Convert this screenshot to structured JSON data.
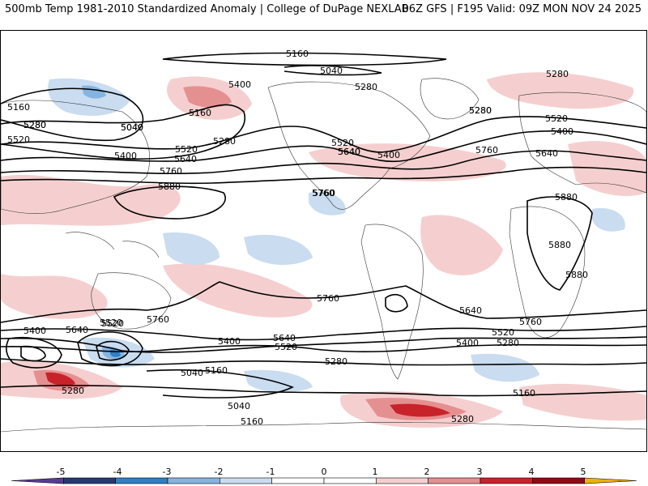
{
  "header": {
    "left_title": "500mb Temp 1981-2010 Standardized Anomaly | College of DuPage NEXLAB",
    "right_title": "06Z GFS | F195 Valid: 09Z MON NOV 24 2025"
  },
  "map": {
    "projection": "equirectangular-global",
    "shading_variable": "500mb temperature standardized anomaly",
    "contour_variable": "500mb height (dam*10)",
    "contour_labels": [
      {
        "text": "5160"
      },
      {
        "text": "5040"
      },
      {
        "text": "5400"
      },
      {
        "text": "5280"
      },
      {
        "text": "5160"
      },
      {
        "text": "5280"
      },
      {
        "text": "5040"
      },
      {
        "text": "5280"
      },
      {
        "text": "5520"
      },
      {
        "text": "5400"
      },
      {
        "text": "5520"
      },
      {
        "text": "5640"
      },
      {
        "text": "5760"
      },
      {
        "text": "5880"
      },
      {
        "text": "5160"
      },
      {
        "text": "5280"
      },
      {
        "text": "5040"
      },
      {
        "text": "5280"
      },
      {
        "text": "5520"
      },
      {
        "text": "5640"
      },
      {
        "text": "5400"
      },
      {
        "text": "5760"
      },
      {
        "text": "5280"
      },
      {
        "text": "5280"
      },
      {
        "text": "5400"
      },
      {
        "text": "5520"
      },
      {
        "text": "5640"
      },
      {
        "text": "5760"
      },
      {
        "text": "5880"
      },
      {
        "text": "5880"
      },
      {
        "text": "5880"
      },
      {
        "text": "5760"
      },
      {
        "text": "5400"
      },
      {
        "text": "5640"
      },
      {
        "text": "5520"
      },
      {
        "text": "5760"
      },
      {
        "text": "5760"
      },
      {
        "text": "5640"
      },
      {
        "text": "5400"
      },
      {
        "text": "5640"
      },
      {
        "text": "5520"
      },
      {
        "text": "5520"
      },
      {
        "text": "5400"
      },
      {
        "text": "5280"
      },
      {
        "text": "5160"
      },
      {
        "text": "5040"
      },
      {
        "text": "5280"
      },
      {
        "text": "5040"
      },
      {
        "text": "5160"
      },
      {
        "text": "5160"
      },
      {
        "text": "5280"
      },
      {
        "text": "5760"
      },
      {
        "text": "5640"
      },
      {
        "text": "5520"
      },
      {
        "text": "5280"
      }
    ]
  },
  "colorbar": {
    "ticks": [
      "-5",
      "-4",
      "-3",
      "-2",
      "-1",
      "0",
      "1",
      "2",
      "3",
      "4",
      "5"
    ],
    "colors": [
      "#5a3c96",
      "#233a75",
      "#2f7fc4",
      "#86b4e0",
      "#c9dcf0",
      "#ffffff",
      "#ffffff",
      "#f5cfcf",
      "#e59090",
      "#c8232b",
      "#8f0a14",
      "#f0b100"
    ]
  }
}
